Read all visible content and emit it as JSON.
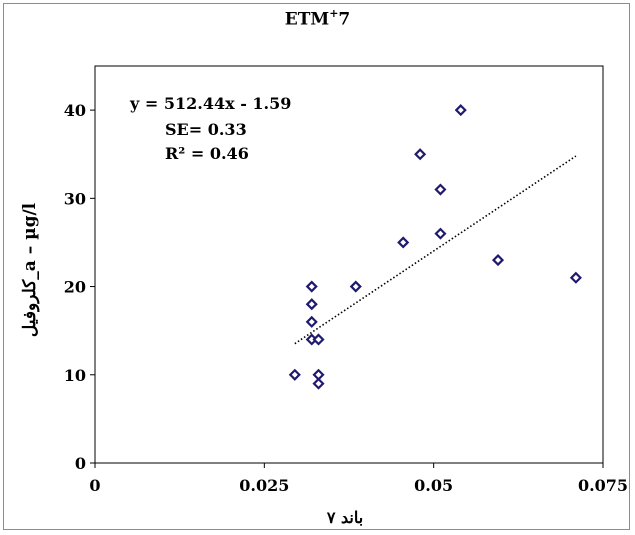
{
  "header": {
    "title_main": "ETM",
    "title_sup": "+",
    "title_tail": "7"
  },
  "chart_data": {
    "type": "scatter",
    "title": "ETM+7",
    "xlabel": "باند ۷",
    "ylabel": "کلروفیل_a – µg/l",
    "xlim": [
      0,
      0.075
    ],
    "ylim": [
      0,
      45
    ],
    "xticks": [
      "0",
      "0.025",
      "0.05",
      "0.075"
    ],
    "yticks": [
      "0",
      "10",
      "20",
      "30",
      "40"
    ],
    "grid": false,
    "points": [
      {
        "x": 0.0295,
        "y": 10
      },
      {
        "x": 0.032,
        "y": 20
      },
      {
        "x": 0.032,
        "y": 18
      },
      {
        "x": 0.032,
        "y": 16
      },
      {
        "x": 0.032,
        "y": 14
      },
      {
        "x": 0.033,
        "y": 14
      },
      {
        "x": 0.033,
        "y": 10
      },
      {
        "x": 0.033,
        "y": 9
      },
      {
        "x": 0.0385,
        "y": 20
      },
      {
        "x": 0.0455,
        "y": 25
      },
      {
        "x": 0.048,
        "y": 35
      },
      {
        "x": 0.051,
        "y": 31
      },
      {
        "x": 0.051,
        "y": 26
      },
      {
        "x": 0.054,
        "y": 40
      },
      {
        "x": 0.0595,
        "y": 23
      },
      {
        "x": 0.071,
        "y": 21
      }
    ],
    "trendline": {
      "slope": 512.44,
      "intercept": -1.59,
      "x_range": [
        0.0295,
        0.071
      ]
    },
    "annotations": {
      "equation": "y = 512.44x - 1.59",
      "se": "SE= 0.33",
      "r2": "R² = 0.46"
    }
  }
}
